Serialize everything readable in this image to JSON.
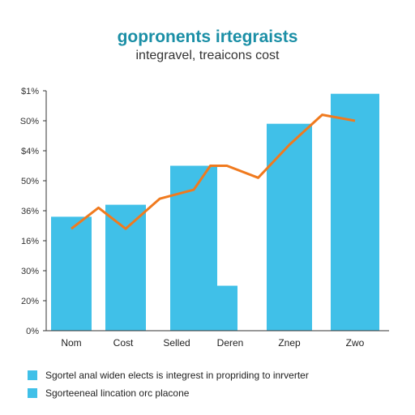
{
  "colors": {
    "bar": "#40c0e8",
    "line": "#f07a1e",
    "title": "#1b8fa6",
    "axis": "#333333"
  },
  "chart_data": {
    "type": "bar",
    "title": "gopronents irtegraists",
    "subtitle": "integravel, treaicons cost",
    "y_ticks": [
      "$1%",
      "S0%",
      "$4%",
      "50%",
      "36%",
      "16%",
      "30%",
      "20%",
      "0%"
    ],
    "ylim": [
      0,
      8
    ],
    "categories": [
      "Nom",
      "Cost",
      "Selled",
      "Deren",
      "Znep",
      "Zwo"
    ],
    "bars": [
      {
        "category": "Nom",
        "value": 3.8
      },
      {
        "category": "Cost",
        "value": 4.2
      },
      {
        "category": "Selled",
        "value": 5.5
      },
      {
        "category": "Deren",
        "value": 1.5
      },
      {
        "category": "Znep",
        "value": 6.9
      },
      {
        "category": "Zwo",
        "value": 7.9
      }
    ],
    "line": {
      "x": [
        0,
        0.5,
        1,
        1.5,
        2,
        2.5,
        3,
        3.5,
        4,
        4.5,
        5
      ],
      "y": [
        3.4,
        4.1,
        3.4,
        4.4,
        4.7,
        5.5,
        5.5,
        5.1,
        6.2,
        7.2,
        7.0
      ]
    },
    "legend": [
      "Sgortel anal widen elects is integrest in propriding to inrverter",
      "Sgorteeneal lincation orc placone"
    ]
  }
}
